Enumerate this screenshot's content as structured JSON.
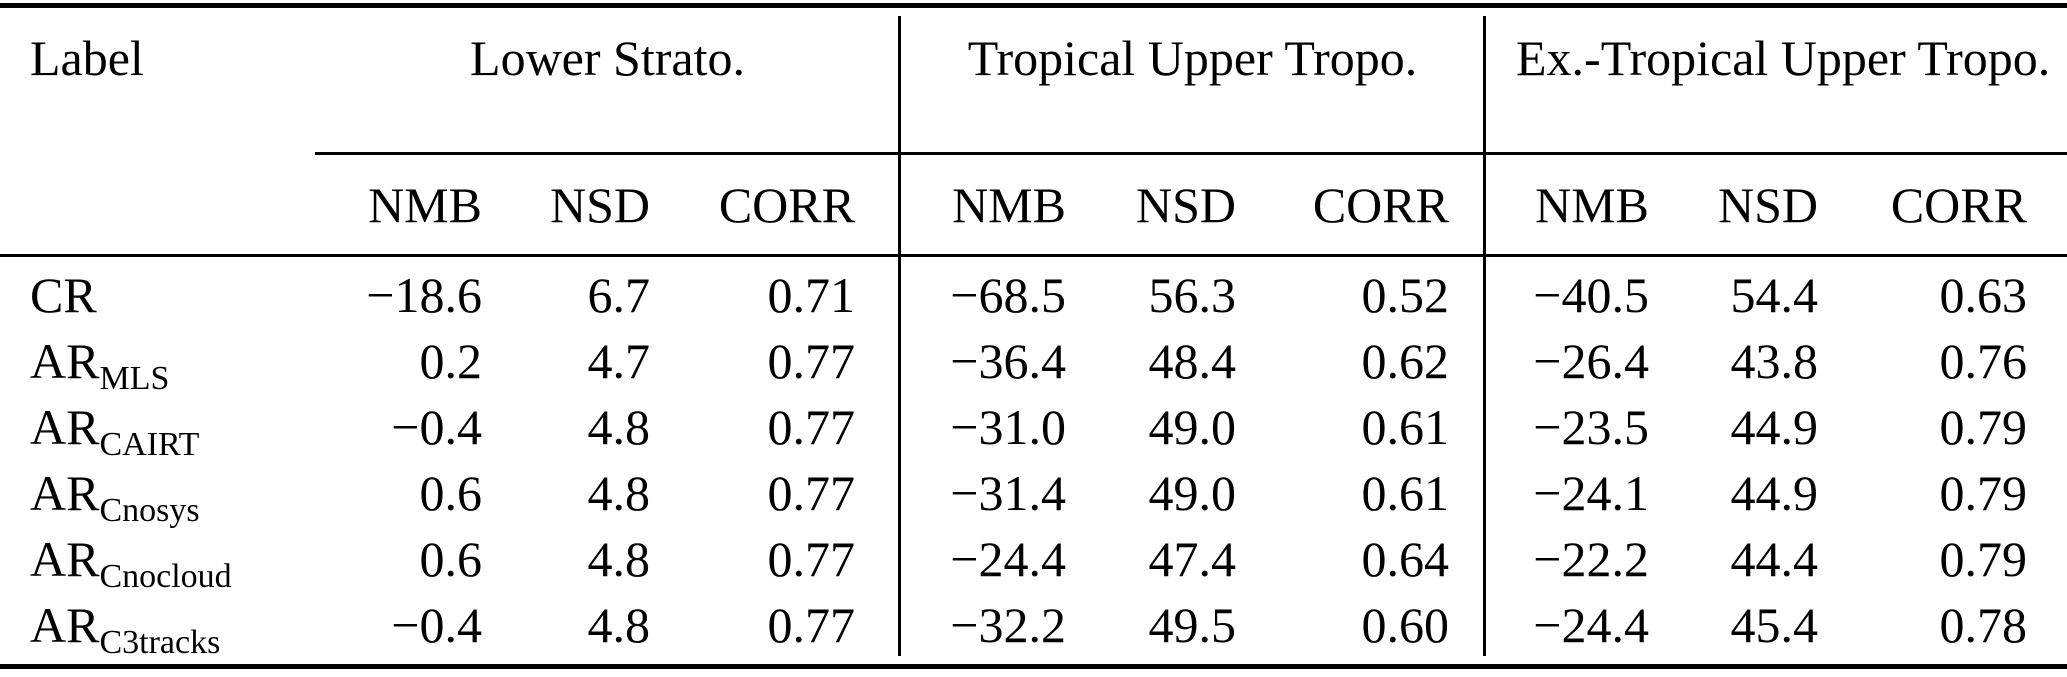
{
  "colors": {
    "ink": "#000000",
    "background": "#ffffff"
  },
  "table": {
    "label_header": "Label",
    "groups": [
      {
        "title": "Lower Strato."
      },
      {
        "title": "Tropical Upper Tropo."
      },
      {
        "title": "Ex.-Tropical Upper Tropo."
      }
    ],
    "metrics": [
      "NMB",
      "NSD",
      "CORR"
    ],
    "rows": [
      {
        "label": "CR",
        "sub": "",
        "values": [
          "−18.6",
          "6.7",
          "0.71",
          "−68.5",
          "56.3",
          "0.52",
          "−40.5",
          "54.4",
          "0.63"
        ]
      },
      {
        "label": "AR",
        "sub": "MLS",
        "values": [
          "0.2",
          "4.7",
          "0.77",
          "−36.4",
          "48.4",
          "0.62",
          "−26.4",
          "43.8",
          "0.76"
        ]
      },
      {
        "label": "AR",
        "sub": "CAIRT",
        "values": [
          "−0.4",
          "4.8",
          "0.77",
          "−31.0",
          "49.0",
          "0.61",
          "−23.5",
          "44.9",
          "0.79"
        ]
      },
      {
        "label": "AR",
        "sub": "Cnosys",
        "values": [
          "0.6",
          "4.8",
          "0.77",
          "−31.4",
          "49.0",
          "0.61",
          "−24.1",
          "44.9",
          "0.79"
        ]
      },
      {
        "label": "AR",
        "sub": "Cnocloud",
        "values": [
          "0.6",
          "4.8",
          "0.77",
          "−24.4",
          "47.4",
          "0.64",
          "−22.2",
          "44.4",
          "0.79"
        ]
      },
      {
        "label": "AR",
        "sub": "C3tracks",
        "values": [
          "−0.4",
          "4.8",
          "0.77",
          "−32.2",
          "49.5",
          "0.60",
          "−24.4",
          "45.4",
          "0.78"
        ]
      }
    ]
  }
}
